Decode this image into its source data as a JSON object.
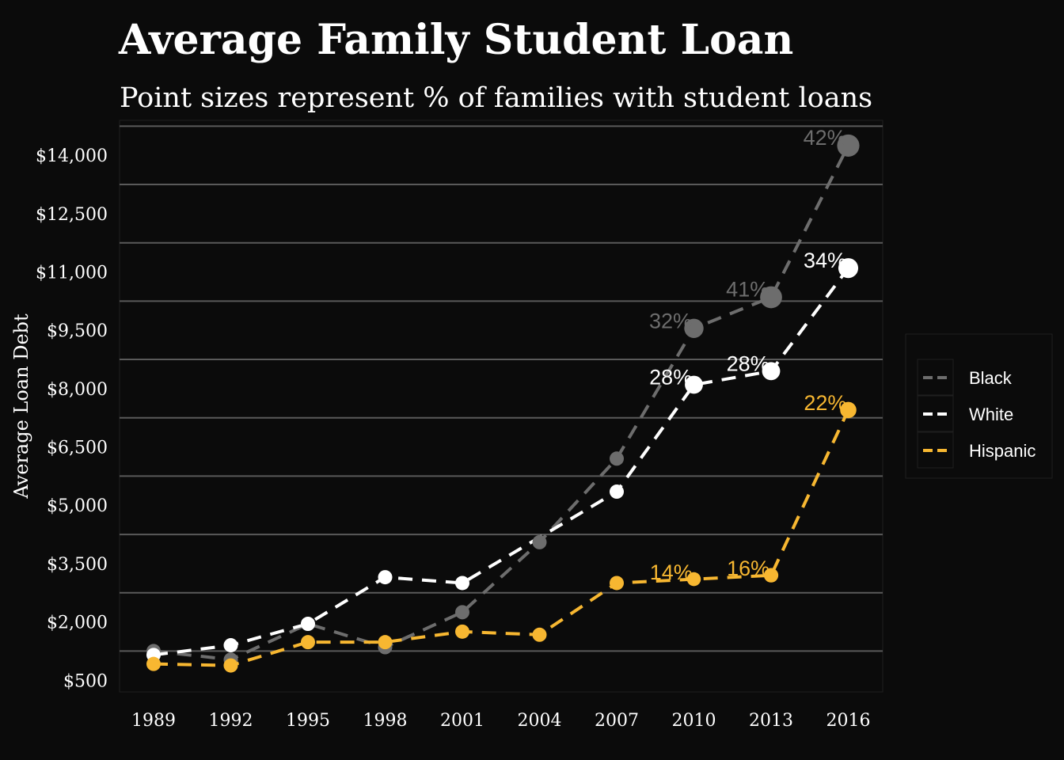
{
  "chart_data": {
    "type": "line",
    "title": "Average Family Student Loan",
    "subtitle": "Point sizes represent % of families with student loans",
    "xlabel": "",
    "ylabel": "Average Loan Debt",
    "categories": [
      "1989",
      "1992",
      "1995",
      "1998",
      "2001",
      "2004",
      "2007",
      "2010",
      "2013",
      "2016"
    ],
    "y_ticks": [
      "$500",
      "$2,000",
      "$3,500",
      "$5,000",
      "$6,500",
      "$8,000",
      "$9,500",
      "$11,000",
      "$12,500",
      "$14,000"
    ],
    "y_tick_values": [
      500,
      2000,
      3500,
      5000,
      6500,
      8000,
      9500,
      11000,
      12500,
      14000
    ],
    "ylim": [
      200,
      14900
    ],
    "grid": "horizontal",
    "legend_position": "right",
    "colors": {
      "background": "#0b0b0b",
      "panel": "#0b0b0b",
      "grid": "#5a5a5a",
      "text": "#ffffff",
      "Black": "#6d6d6d",
      "White": "#ffffff",
      "Hispanic": "#f7b731"
    },
    "series": [
      {
        "name": "Black",
        "color": "#6d6d6d",
        "values": [
          1250,
          1030,
          1950,
          1350,
          2250,
          4050,
          6200,
          9550,
          10350,
          14250
        ],
        "share_pct": [
          null,
          null,
          null,
          null,
          null,
          null,
          null,
          32,
          41,
          42
        ],
        "labels": [
          "",
          "",
          "",
          "",
          "",
          "",
          "",
          "32%",
          "41%",
          "42%"
        ]
      },
      {
        "name": "White",
        "color": "#ffffff",
        "values": [
          1150,
          1400,
          1950,
          3150,
          3000,
          null,
          5350,
          8100,
          8450,
          11100
        ],
        "share_pct": [
          null,
          null,
          null,
          null,
          null,
          null,
          null,
          28,
          28,
          34
        ],
        "labels": [
          "",
          "",
          "",
          "",
          "",
          "",
          "",
          "28%",
          "28%",
          "34%"
        ]
      },
      {
        "name": "Hispanic",
        "color": "#f7b731",
        "values": [
          920,
          880,
          1480,
          1480,
          1750,
          1670,
          3000,
          3100,
          3200,
          7450
        ],
        "share_pct": [
          null,
          null,
          null,
          null,
          null,
          null,
          null,
          14,
          16,
          22
        ],
        "labels": [
          "",
          "",
          "",
          "",
          "",
          "",
          "",
          "14%",
          "16%",
          "22%"
        ]
      }
    ]
  }
}
